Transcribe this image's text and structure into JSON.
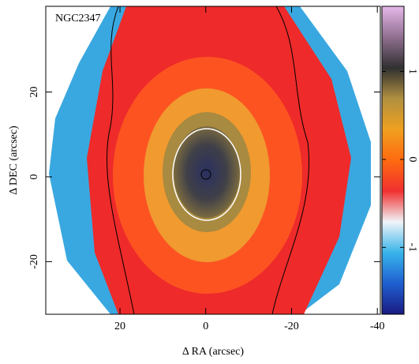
{
  "chart_data": {
    "type": "image",
    "annotation": "NGC2347",
    "xlabel": "Δ RA (arcsec)",
    "ylabel": "Δ DEC (arcsec)",
    "xlim": [
      37.3,
      -40.7
    ],
    "xticks": [
      20,
      0,
      -20,
      -40
    ],
    "ylim": [
      -32.4,
      40.2
    ],
    "yticks": [
      -20,
      0,
      20
    ],
    "colorbar": {
      "lim": [
        -1.76,
        1.74
      ],
      "ticks": [
        -1,
        0,
        1
      ],
      "colormap": [
        "#1a1a80",
        "#1f5fd0",
        "#38b4ea",
        "#f0f4f8",
        "#f03030",
        "#ff6a10",
        "#f0a020",
        "#b09040",
        "#303030",
        "#907090",
        "#e6b8ea"
      ]
    }
  }
}
